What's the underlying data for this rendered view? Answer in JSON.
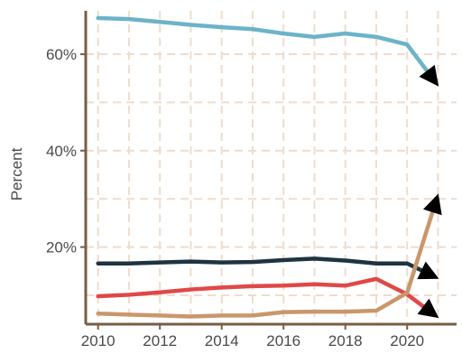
{
  "chart_data": {
    "type": "line",
    "ylabel": "Percent",
    "xlabel": "",
    "xlim": [
      2009.6,
      2021.6
    ],
    "ylim": [
      4.0,
      69.0
    ],
    "x_ticks": [
      2010,
      2012,
      2014,
      2016,
      2018,
      2020
    ],
    "x_tick_labels": [
      "2010",
      "2012",
      "2014",
      "2016",
      "2018",
      "2020"
    ],
    "y_ticks": [
      20,
      40,
      60
    ],
    "y_tick_labels": [
      "20%",
      "40%",
      "60%"
    ],
    "grid": true,
    "end_markers": "arrow",
    "x": [
      2010,
      2011,
      2012,
      2013,
      2014,
      2015,
      2016,
      2017,
      2018,
      2019,
      2020,
      2021
    ],
    "series": [
      {
        "color": "#6cb3c9",
        "values": [
          67.5,
          67.3,
          66.7,
          66.1,
          65.6,
          65.2,
          64.3,
          63.6,
          64.3,
          63.6,
          62.0,
          53.5
        ]
      },
      {
        "color": "#1e3440",
        "values": [
          16.6,
          16.6,
          16.8,
          17.0,
          16.8,
          16.9,
          17.3,
          17.6,
          17.2,
          16.6,
          16.6,
          13.5
        ]
      },
      {
        "color": "#e04848",
        "values": [
          9.8,
          10.1,
          10.6,
          11.2,
          11.6,
          11.9,
          12.0,
          12.3,
          12.0,
          13.4,
          10.2,
          5.4
        ]
      },
      {
        "color": "#c9976b",
        "values": [
          6.2,
          6.0,
          5.8,
          5.6,
          5.8,
          5.8,
          6.5,
          6.6,
          6.6,
          6.8,
          10.5,
          30.9
        ]
      }
    ]
  }
}
